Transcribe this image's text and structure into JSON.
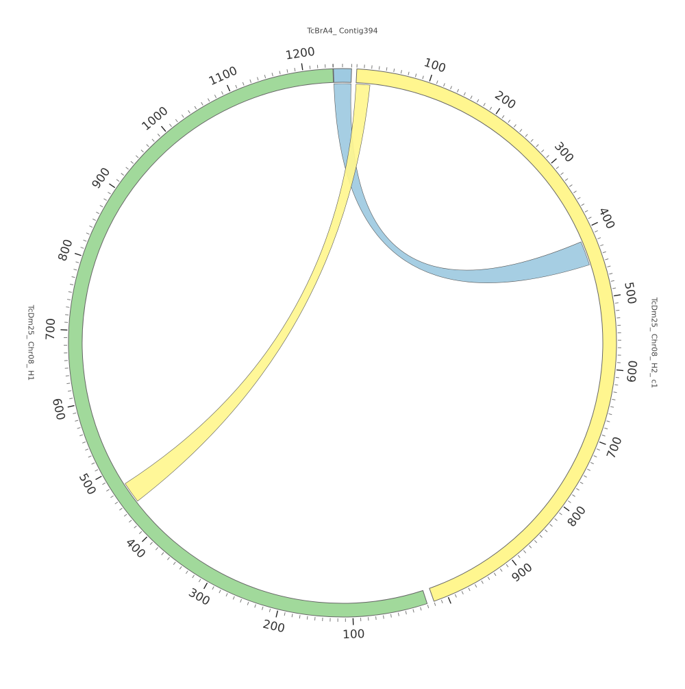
{
  "chart_data": {
    "type": "chord",
    "segments": [
      {
        "name": "TcBrA4_ Contig394",
        "length": 20,
        "color": "#9ecae1",
        "tick_labels": []
      },
      {
        "name": "TcDm25_ Chr08_ H2_ c1",
        "length": 1020,
        "color": "#fff68f",
        "tick_labels": [
          "100",
          "200",
          "300",
          "400",
          "500",
          "600",
          "700",
          "800",
          "900"
        ]
      },
      {
        "name": "TcDm25_ Chr08_ H1",
        "length": 1240,
        "color": "#a1d99b",
        "tick_labels": [
          "100",
          "200",
          "300",
          "400",
          "500",
          "600",
          "700",
          "800",
          "900",
          "1000",
          "1100",
          "1200"
        ]
      }
    ],
    "links": [
      {
        "source_segment": 0,
        "source_start": 0,
        "source_end": 20,
        "target_segment": 1,
        "target_start": 415,
        "target_end": 450,
        "color": "#9ecae1"
      },
      {
        "source_segment": 1,
        "source_start": 0,
        "source_end": 20,
        "target_segment": 2,
        "target_start": 445,
        "target_end": 475,
        "color": "#fff68f"
      }
    ],
    "tick_interval": 100,
    "minor_tick_interval": 10
  }
}
